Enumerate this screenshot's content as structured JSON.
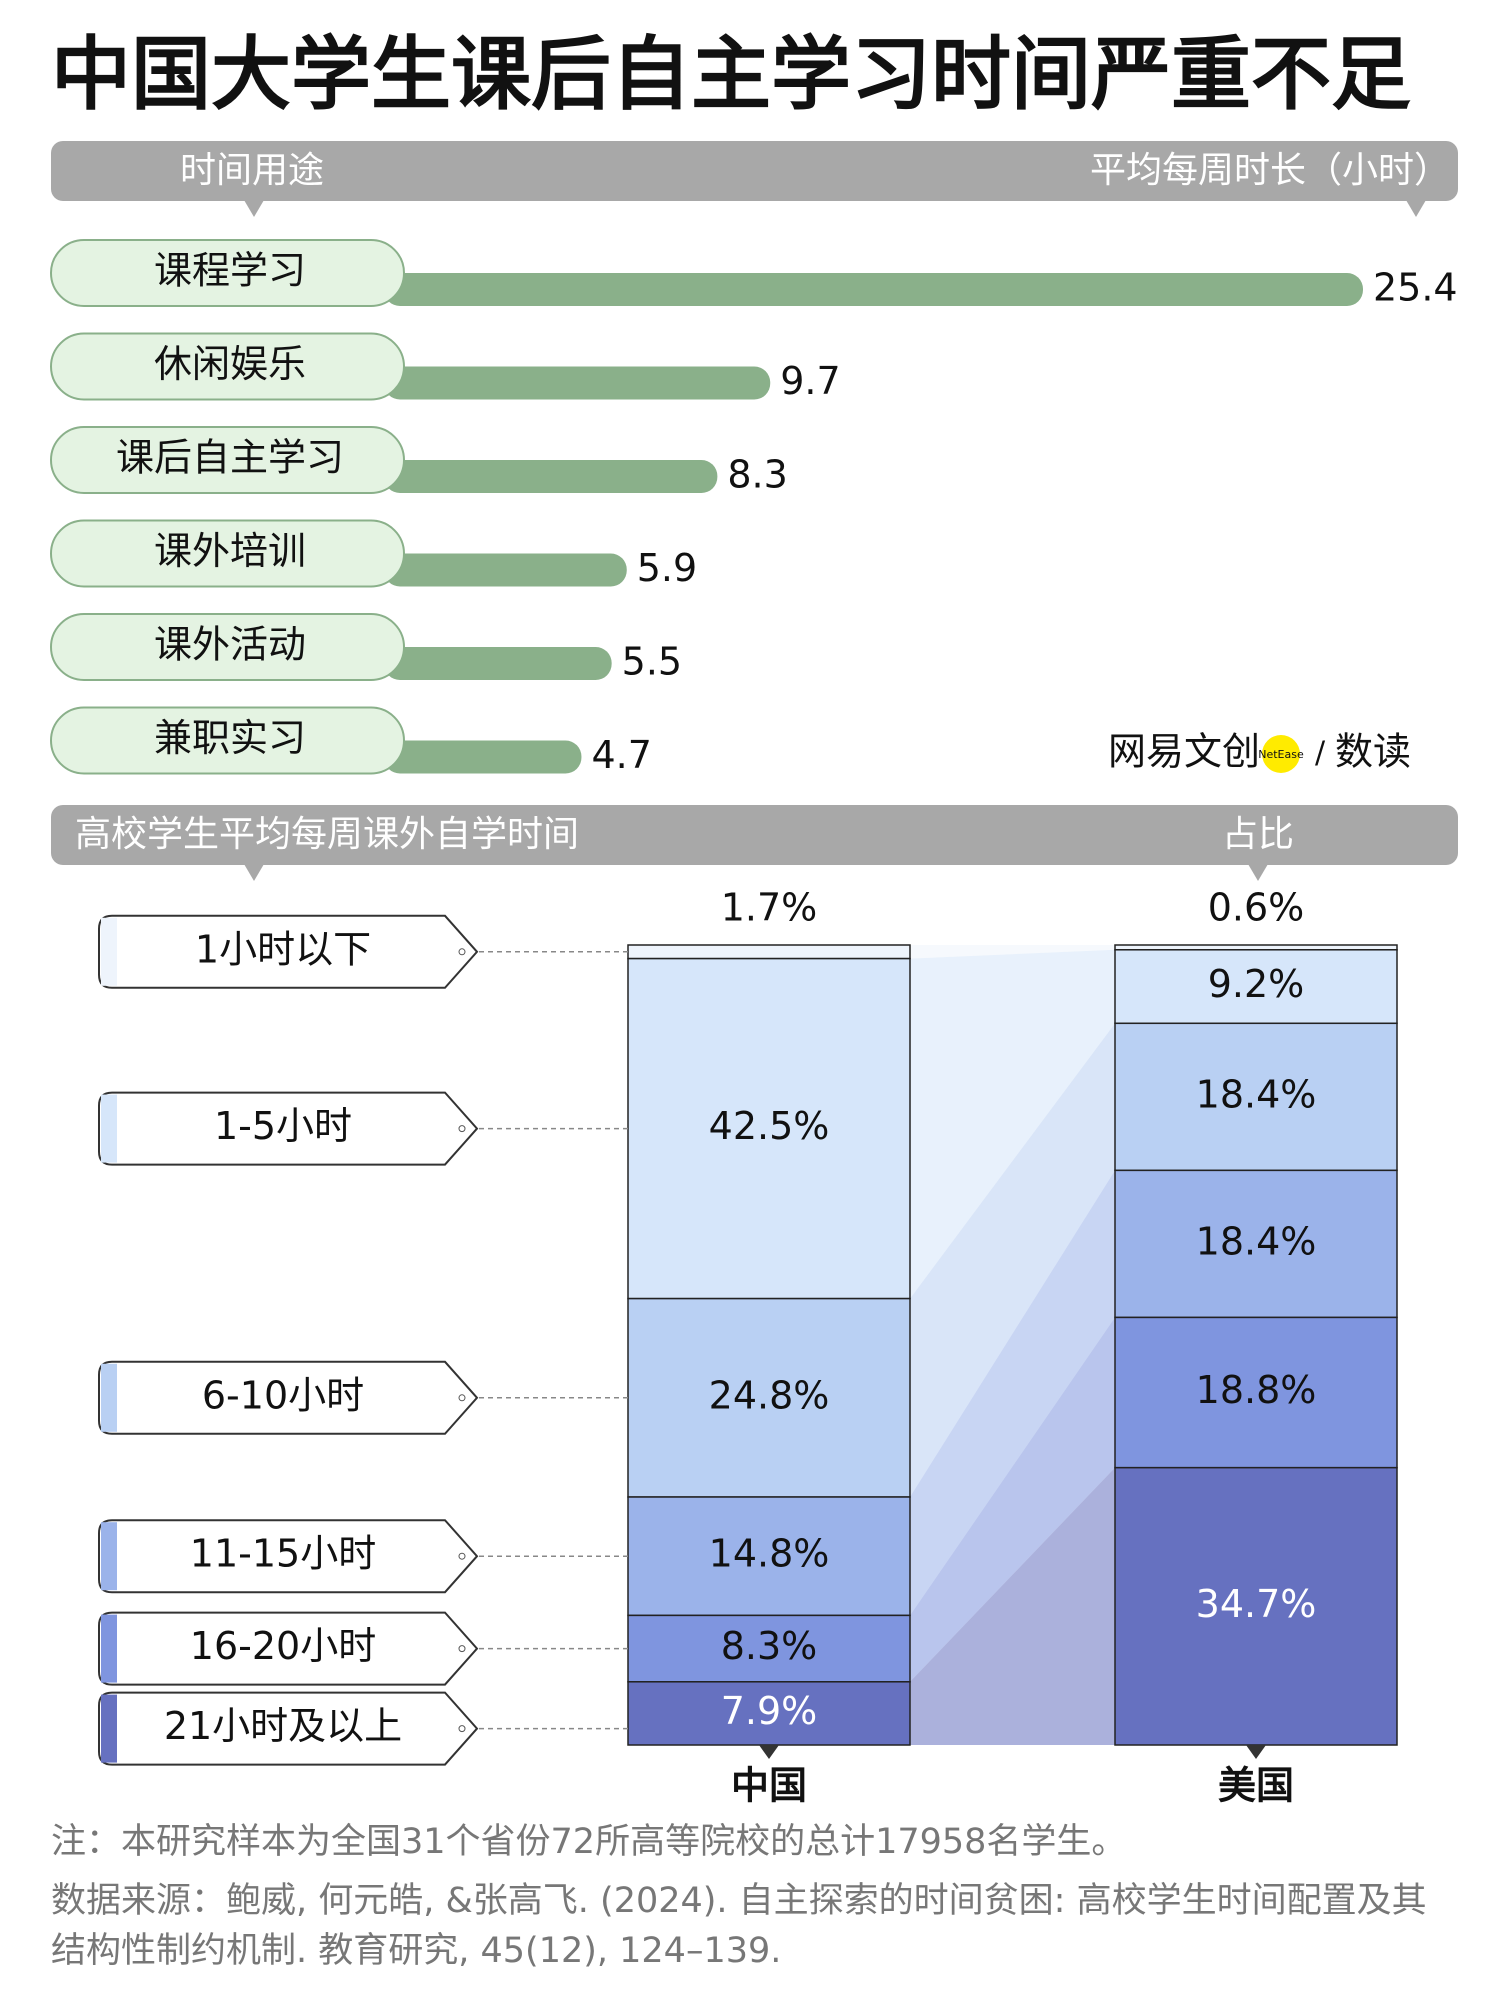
{
  "title": "中国大学生课后自主学习时间严重不足",
  "chart_data": [
    {
      "type": "hbar",
      "header_left": "时间用途",
      "header_right": "平均每周时长（小时）",
      "categories": [
        "课程学习",
        "休闲娱乐",
        "课后自主学习",
        "课外培训",
        "课外活动",
        "兼职实习"
      ],
      "values": [
        25.4,
        9.7,
        8.3,
        5.9,
        5.5,
        4.7
      ],
      "color": "#8ab08a"
    },
    {
      "type": "stacked_bar",
      "header_left": "高校学生平均每周课外自学时间",
      "header_right": "占比",
      "categories": [
        "中国",
        "美国"
      ],
      "series": [
        {
          "name": "1小时以下",
          "color": "#eef4fc",
          "values": [
            1.7,
            0.6
          ],
          "value_labels": [
            "1.7%",
            "0.6%"
          ]
        },
        {
          "name": "1-5小时",
          "color": "#d6e6fa",
          "values": [
            42.5,
            9.2
          ],
          "value_labels": [
            "42.5%",
            "9.2%"
          ]
        },
        {
          "name": "6-10小时",
          "color": "#b9d0f3",
          "values": [
            24.8,
            18.4
          ],
          "value_labels": [
            "24.8%",
            "18.4%"
          ]
        },
        {
          "name": "11-15小时",
          "color": "#9bb3ea",
          "values": [
            14.8,
            18.4
          ],
          "value_labels": [
            "14.8%",
            "18.4%"
          ]
        },
        {
          "name": "16-20小时",
          "color": "#7f95df",
          "values": [
            8.3,
            18.8
          ],
          "value_labels": [
            "8.3%",
            "18.8%"
          ]
        },
        {
          "name": "21小时及以上",
          "color": "#6671c0",
          "values": [
            7.9,
            34.7
          ],
          "value_labels": [
            "7.9%",
            "34.7%"
          ]
        }
      ]
    }
  ],
  "logo": {
    "brand": "网易文创",
    "badge": "NetEase",
    "slash": "/",
    "section": "数读"
  },
  "note": "注：本研究样本为全国31个省份72所高等院校的总计17958名学生。",
  "source": "数据来源：鲍威, 何元皓, &张高飞. (2024). 自主探索的时间贫困: 高校学生时间配置及其结构性制约机制. 教育研究, 45(12), 124–139."
}
